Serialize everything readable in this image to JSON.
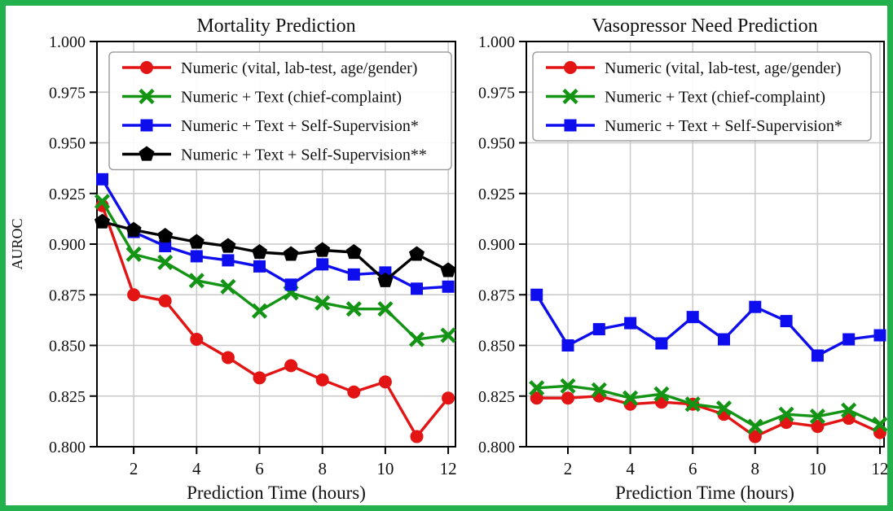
{
  "figure": {
    "border_color": "#22b14c",
    "background": "#ffffff",
    "grid_color": "#c9c9c9",
    "spine_color": "#000000",
    "legend_border_color": "#a0a0a0"
  },
  "chart_data": [
    {
      "type": "line",
      "title": "Mortality Prediction",
      "xlabel": "Prediction Time (hours)",
      "ylabel": "AUROC",
      "x": [
        1,
        2,
        3,
        4,
        5,
        6,
        7,
        8,
        9,
        10,
        11,
        12
      ],
      "xticks": [
        2,
        4,
        6,
        8,
        10,
        12
      ],
      "yticks": [
        1.0,
        0.975,
        0.95,
        0.925,
        0.9,
        0.875,
        0.85,
        0.825,
        0.8
      ],
      "ylim": [
        0.8,
        1.0
      ],
      "grid": true,
      "legend_position": "upper left",
      "series": [
        {
          "name": "Numeric (vital, lab-test, age/gender)",
          "color": "#e31414",
          "marker": "circle",
          "values": [
            0.919,
            0.875,
            0.872,
            0.853,
            0.844,
            0.834,
            0.84,
            0.833,
            0.827,
            0.832,
            0.805,
            0.824
          ]
        },
        {
          "name": "Numeric + Text (chief-complaint)",
          "color": "#149414",
          "marker": "x",
          "values": [
            0.921,
            0.895,
            0.891,
            0.882,
            0.879,
            0.867,
            0.876,
            0.871,
            0.868,
            0.868,
            0.853,
            0.855
          ]
        },
        {
          "name": "Numeric + Text + Self-Supervision*",
          "color": "#0d0dee",
          "marker": "square",
          "values": [
            0.932,
            0.906,
            0.899,
            0.894,
            0.892,
            0.889,
            0.88,
            0.89,
            0.885,
            0.886,
            0.878,
            0.879
          ]
        },
        {
          "name": "Numeric + Text + Self-Supervision**",
          "color": "#000000",
          "marker": "pentagon",
          "values": [
            0.911,
            0.907,
            0.904,
            0.901,
            0.899,
            0.896,
            0.895,
            0.897,
            0.896,
            0.882,
            0.895,
            0.887
          ]
        }
      ]
    },
    {
      "type": "line",
      "title": "Vasopressor Need Prediction",
      "xlabel": "Prediction Time (hours)",
      "ylabel": "",
      "x": [
        1,
        2,
        3,
        4,
        5,
        6,
        7,
        8,
        9,
        10,
        11,
        12
      ],
      "xticks": [
        2,
        4,
        6,
        8,
        10,
        12
      ],
      "yticks": [
        1.0,
        0.975,
        0.95,
        0.925,
        0.9,
        0.875,
        0.85,
        0.825,
        0.8
      ],
      "ylim": [
        0.8,
        1.0
      ],
      "grid": true,
      "legend_position": "upper left",
      "series": [
        {
          "name": "Numeric (vital, lab-test, age/gender)",
          "color": "#e31414",
          "marker": "circle",
          "values": [
            0.824,
            0.824,
            0.825,
            0.821,
            0.822,
            0.821,
            0.816,
            0.805,
            0.812,
            0.81,
            0.814,
            0.807
          ]
        },
        {
          "name": "Numeric + Text (chief-complaint)",
          "color": "#149414",
          "marker": "x",
          "values": [
            0.829,
            0.83,
            0.828,
            0.824,
            0.826,
            0.821,
            0.819,
            0.81,
            0.816,
            0.815,
            0.818,
            0.811
          ]
        },
        {
          "name": "Numeric + Text + Self-Supervision*",
          "color": "#0d0dee",
          "marker": "square",
          "values": [
            0.875,
            0.85,
            0.858,
            0.861,
            0.851,
            0.864,
            0.853,
            0.869,
            0.862,
            0.845,
            0.853,
            0.855
          ]
        }
      ]
    }
  ]
}
